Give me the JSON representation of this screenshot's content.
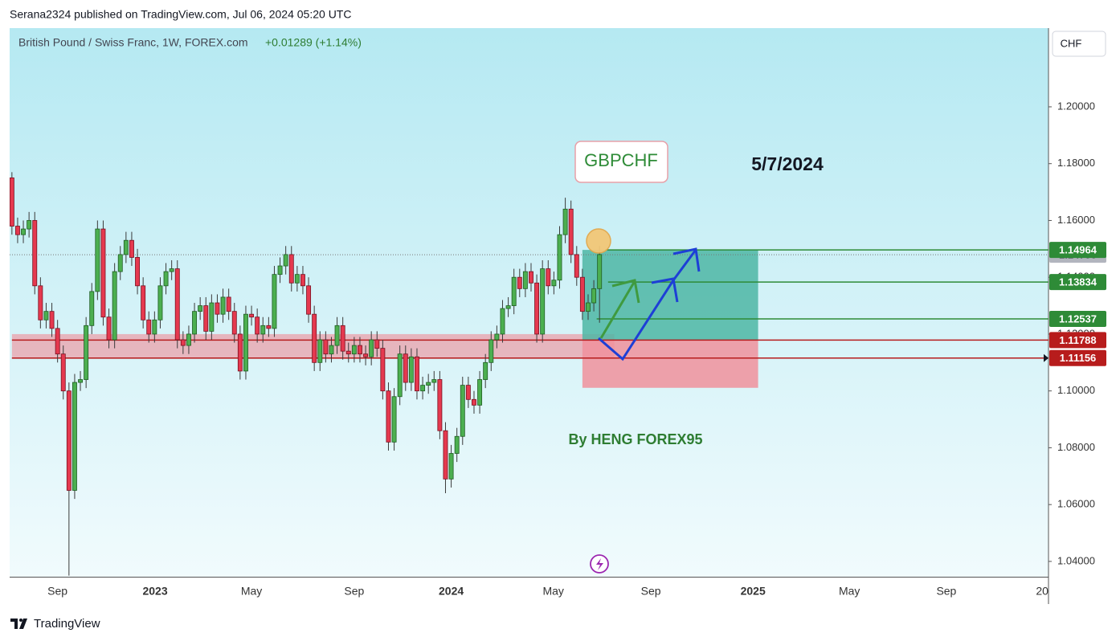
{
  "header": {
    "published": "Serana2324 published on TradingView.com, Jul 06, 2024 05:20 UTC"
  },
  "footer": {
    "brand": "TradingView"
  },
  "chart_data": {
    "type": "candlestick",
    "title": "British Pound / Swiss Franc, 1W, FOREX.com",
    "change": "+0.01289 (+1.14%)",
    "currency": "CHF",
    "up_color": "#4caf50",
    "down_color": "#e5394f",
    "x": [
      0,
      1,
      2,
      3,
      4,
      5,
      6,
      7,
      8,
      9,
      10,
      11,
      12,
      13,
      14,
      15,
      16,
      17,
      18,
      19,
      20,
      21,
      22,
      23,
      24,
      25,
      26,
      27,
      28,
      29,
      30,
      31,
      32,
      33,
      34,
      35,
      36,
      37,
      38,
      39,
      40,
      41,
      42,
      43,
      44,
      45,
      46,
      47,
      48,
      49,
      50,
      51,
      52,
      53,
      54,
      55,
      56,
      57,
      58,
      59,
      60,
      61,
      62,
      63,
      64,
      65,
      66,
      67,
      68,
      69,
      70,
      71,
      72,
      73,
      74,
      75,
      76,
      77,
      78,
      79,
      80,
      81,
      82,
      83,
      84,
      85,
      86,
      87,
      88,
      89,
      90,
      91,
      92,
      93,
      94,
      95,
      96,
      97,
      98,
      99,
      100,
      101,
      102,
      103
    ],
    "open": [
      1.175,
      1.158,
      1.155,
      1.157,
      1.16,
      1.137,
      1.125,
      1.128,
      1.122,
      1.113,
      1.1,
      1.065,
      1.103,
      1.104,
      1.123,
      1.135,
      1.157,
      1.126,
      1.118,
      1.142,
      1.148,
      1.153,
      1.147,
      1.137,
      1.125,
      1.12,
      1.125,
      1.137,
      1.142,
      1.143,
      1.118,
      1.116,
      1.12,
      1.128,
      1.13,
      1.121,
      1.131,
      1.127,
      1.133,
      1.128,
      1.12,
      1.107,
      1.127,
      1.126,
      1.12,
      1.123,
      1.122,
      1.141,
      1.144,
      1.148,
      1.138,
      1.141,
      1.137,
      1.127,
      1.11,
      1.118,
      1.113,
      1.116,
      1.123,
      1.114,
      1.113,
      1.116,
      1.113,
      1.112,
      1.118,
      1.115,
      1.1,
      1.082,
      1.098,
      1.113,
      1.103,
      1.112,
      1.1,
      1.102,
      1.103,
      1.104,
      1.086,
      1.069,
      1.078,
      1.084,
      1.102,
      1.097,
      1.095,
      1.104,
      1.11,
      1.118,
      1.12,
      1.129,
      1.13,
      1.14,
      1.136,
      1.142,
      1.138,
      1.12,
      1.143,
      1.137,
      1.139,
      1.155,
      1.164,
      1.148,
      1.14,
      1.128,
      1.131,
      1.136
    ],
    "high": [
      1.177,
      1.161,
      1.16,
      1.163,
      1.163,
      1.14,
      1.131,
      1.131,
      1.125,
      1.116,
      1.103,
      1.106,
      1.107,
      1.126,
      1.138,
      1.16,
      1.16,
      1.129,
      1.145,
      1.151,
      1.156,
      1.156,
      1.15,
      1.14,
      1.128,
      1.128,
      1.14,
      1.145,
      1.146,
      1.146,
      1.121,
      1.123,
      1.131,
      1.133,
      1.133,
      1.134,
      1.134,
      1.136,
      1.136,
      1.131,
      1.123,
      1.13,
      1.13,
      1.129,
      1.126,
      1.126,
      1.144,
      1.147,
      1.151,
      1.151,
      1.144,
      1.144,
      1.14,
      1.13,
      1.121,
      1.121,
      1.119,
      1.126,
      1.126,
      1.117,
      1.119,
      1.119,
      1.116,
      1.121,
      1.121,
      1.118,
      1.103,
      1.101,
      1.116,
      1.116,
      1.115,
      1.115,
      1.105,
      1.106,
      1.107,
      1.107,
      1.089,
      1.081,
      1.087,
      1.105,
      1.105,
      1.1,
      1.107,
      1.113,
      1.121,
      1.123,
      1.132,
      1.133,
      1.143,
      1.143,
      1.145,
      1.145,
      1.141,
      1.146,
      1.146,
      1.142,
      1.158,
      1.168,
      1.167,
      1.151,
      1.143,
      1.134,
      1.139,
      1.151
    ],
    "low": [
      1.155,
      1.152,
      1.152,
      1.154,
      1.134,
      1.122,
      1.122,
      1.119,
      1.11,
      1.097,
      1.035,
      1.062,
      1.1,
      1.101,
      1.12,
      1.132,
      1.123,
      1.115,
      1.115,
      1.139,
      1.145,
      1.144,
      1.134,
      1.122,
      1.117,
      1.117,
      1.122,
      1.134,
      1.139,
      1.115,
      1.113,
      1.113,
      1.117,
      1.125,
      1.118,
      1.118,
      1.124,
      1.124,
      1.125,
      1.117,
      1.104,
      1.104,
      1.123,
      1.117,
      1.117,
      1.119,
      1.119,
      1.138,
      1.141,
      1.135,
      1.135,
      1.134,
      1.124,
      1.107,
      1.107,
      1.11,
      1.11,
      1.113,
      1.111,
      1.11,
      1.11,
      1.11,
      1.109,
      1.109,
      1.112,
      1.097,
      1.079,
      1.079,
      1.095,
      1.1,
      1.1,
      1.097,
      1.097,
      1.099,
      1.1,
      1.083,
      1.064,
      1.066,
      1.075,
      1.081,
      1.094,
      1.092,
      1.092,
      1.101,
      1.107,
      1.115,
      1.117,
      1.126,
      1.127,
      1.133,
      1.133,
      1.135,
      1.117,
      1.117,
      1.134,
      1.134,
      1.136,
      1.152,
      1.145,
      1.137,
      1.125,
      1.125,
      1.128,
      1.124
    ],
    "close": [
      1.158,
      1.155,
      1.157,
      1.16,
      1.137,
      1.125,
      1.128,
      1.122,
      1.113,
      1.1,
      1.065,
      1.103,
      1.104,
      1.123,
      1.135,
      1.157,
      1.126,
      1.118,
      1.142,
      1.148,
      1.153,
      1.147,
      1.137,
      1.125,
      1.12,
      1.125,
      1.137,
      1.142,
      1.143,
      1.118,
      1.116,
      1.12,
      1.128,
      1.13,
      1.121,
      1.131,
      1.127,
      1.133,
      1.128,
      1.12,
      1.107,
      1.127,
      1.126,
      1.12,
      1.123,
      1.122,
      1.141,
      1.144,
      1.148,
      1.138,
      1.141,
      1.137,
      1.127,
      1.11,
      1.118,
      1.113,
      1.116,
      1.123,
      1.114,
      1.113,
      1.116,
      1.113,
      1.112,
      1.118,
      1.115,
      1.1,
      1.082,
      1.098,
      1.113,
      1.103,
      1.112,
      1.1,
      1.102,
      1.103,
      1.104,
      1.086,
      1.069,
      1.078,
      1.084,
      1.102,
      1.097,
      1.095,
      1.104,
      1.11,
      1.118,
      1.12,
      1.129,
      1.13,
      1.14,
      1.136,
      1.142,
      1.138,
      1.12,
      1.143,
      1.137,
      1.139,
      1.155,
      1.164,
      1.148,
      1.14,
      1.128,
      1.131,
      1.136,
      1.148
    ],
    "xlim": [
      -0.4,
      181.7
    ],
    "xticks": [
      {
        "value": 8.0,
        "label": "Sep"
      },
      {
        "value": 25.1,
        "label": "2023"
      },
      {
        "value": 42.0,
        "label": "May"
      },
      {
        "value": 60.0,
        "label": "Sep"
      },
      {
        "value": 77.0,
        "label": "2024"
      },
      {
        "value": 94.9,
        "label": "May"
      },
      {
        "value": 112.0,
        "label": "Sep"
      },
      {
        "value": 129.9,
        "label": "2025"
      },
      {
        "value": 146.8,
        "label": "May"
      },
      {
        "value": 163.8,
        "label": "Sep"
      },
      {
        "value": 180.6,
        "label": "20"
      }
    ],
    "ylim": [
      1.0346,
      1.2277
    ],
    "yticks": [
      {
        "value": 1.04,
        "label": "1.04000"
      },
      {
        "value": 1.06,
        "label": "1.06000"
      },
      {
        "value": 1.08,
        "label": "1.08000"
      },
      {
        "value": 1.1,
        "label": "1.10000"
      },
      {
        "value": 1.12,
        "label": "1.12000"
      },
      {
        "value": 1.14,
        "label": "1.14000"
      },
      {
        "value": 1.16,
        "label": "1.16000"
      },
      {
        "value": 1.18,
        "label": "1.18000"
      },
      {
        "value": 1.2,
        "label": "1.20000"
      }
    ],
    "zone": {
      "from": 1.1113,
      "to": 1.12,
      "x": [
        0,
        105.6
      ],
      "color": "#f08c98"
    },
    "position": {
      "x": [
        100,
        130.8
      ],
      "target": 1.14964,
      "entry": 1.11788,
      "stop": 1.1011,
      "profit_color": "#4db6a5",
      "loss_color": "#f0909c"
    },
    "current_price": 1.14795,
    "levels": [
      {
        "value": 1.14964,
        "start": 104,
        "color": "#2e8b37"
      },
      {
        "value": 1.13834,
        "start": 104.5,
        "color": "#2e8b37"
      },
      {
        "value": 1.12537,
        "start": 102.5,
        "color": "#2e8b37"
      },
      {
        "value": 1.11788,
        "start": 0,
        "color": "#b71c1c"
      },
      {
        "value": 1.11156,
        "start": 0,
        "color": "#b71c1c"
      }
    ],
    "annotations": {
      "symbol": "GBPCHF",
      "date": "5/7/2024",
      "author": "By HENG FOREX95"
    }
  }
}
